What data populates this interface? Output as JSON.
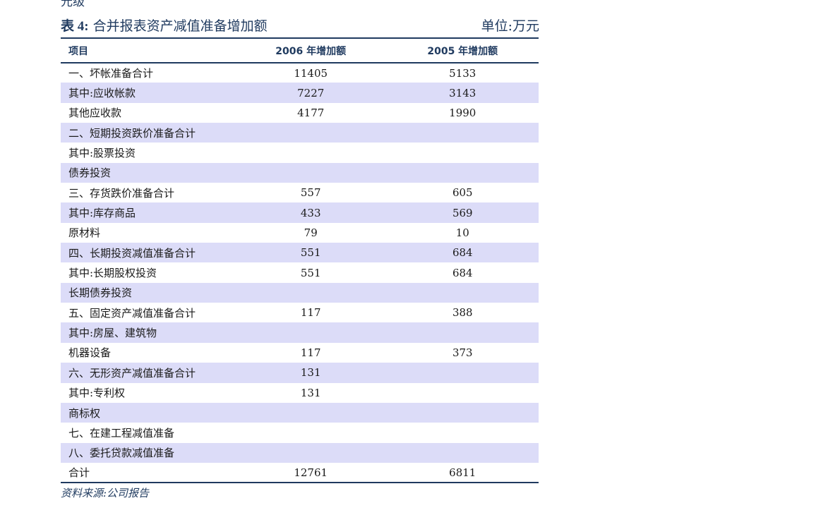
{
  "title": {
    "label": "表 4:",
    "text": "合并报表资产减值准备增加额",
    "unit": "单位:万元"
  },
  "table": {
    "headers": [
      "项目",
      "2006 年增加额",
      "2005 年增加额"
    ],
    "rows": [
      [
        "一、坏帐准备合计",
        "11405",
        "5133"
      ],
      [
        "其中:应收帐款",
        "7227",
        "3143"
      ],
      [
        "其他应收款",
        "4177",
        "1990"
      ],
      [
        "二、短期投资跌价准备合计",
        "",
        ""
      ],
      [
        "其中:股票投资",
        "",
        ""
      ],
      [
        "债券投资",
        "",
        ""
      ],
      [
        "三、存货跌价准备合计",
        "557",
        "605"
      ],
      [
        "其中:库存商品",
        "433",
        "569"
      ],
      [
        "原材料",
        "79",
        "10"
      ],
      [
        "四、长期投资减值准备合计",
        "551",
        "684"
      ],
      [
        "其中:长期股权投资",
        "551",
        "684"
      ],
      [
        "长期债券投资",
        "",
        ""
      ],
      [
        "五、固定资产减值准备合计",
        "117",
        "388"
      ],
      [
        "其中:房屋、建筑物",
        "",
        ""
      ],
      [
        "机器设备",
        "117",
        "373"
      ],
      [
        "六、无形资产减值准备合计",
        "131",
        ""
      ],
      [
        "其中:专利权",
        "131",
        ""
      ],
      [
        "商标权",
        "",
        ""
      ],
      [
        "七、在建工程减值准备",
        "",
        ""
      ],
      [
        "八、委托贷款减值准备",
        "",
        ""
      ],
      [
        "合计",
        "12761",
        "6811"
      ]
    ]
  },
  "source": "资料来源:公司报告"
}
